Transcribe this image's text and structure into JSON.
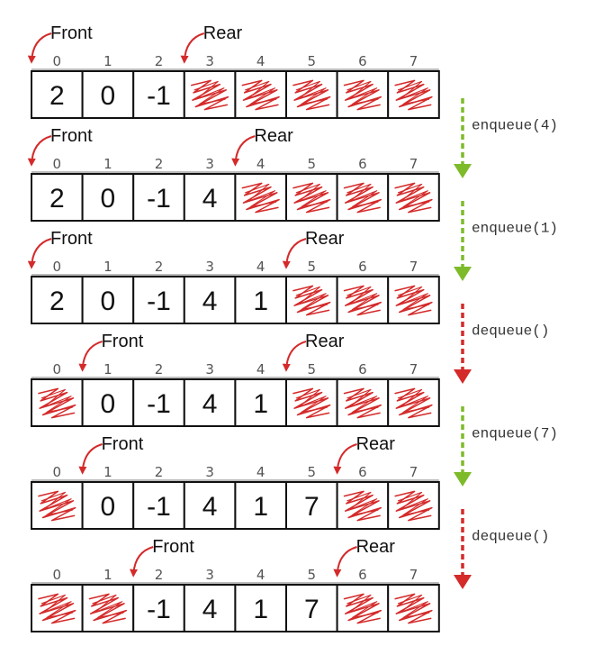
{
  "colors": {
    "pointer_arrow": "#d42a2a",
    "scribble": "#d42a2a",
    "enqueue_arrow": "#7dbb2a",
    "dequeue_arrow": "#d42a2a",
    "border": "#111111",
    "text": "#111111",
    "index_text": "#555555"
  },
  "labels": {
    "front": "Front",
    "rear": "Rear"
  },
  "indices": [
    "0",
    "1",
    "2",
    "3",
    "4",
    "5",
    "6",
    "7"
  ],
  "states": [
    {
      "front": 0,
      "rear": 3,
      "cells": [
        "2",
        "0",
        "-1",
        null,
        null,
        null,
        null,
        null
      ]
    },
    {
      "front": 0,
      "rear": 4,
      "cells": [
        "2",
        "0",
        "-1",
        "4",
        null,
        null,
        null,
        null
      ]
    },
    {
      "front": 0,
      "rear": 5,
      "cells": [
        "2",
        "0",
        "-1",
        "4",
        "1",
        null,
        null,
        null
      ]
    },
    {
      "front": 1,
      "rear": 5,
      "cells": [
        null,
        "0",
        "-1",
        "4",
        "1",
        null,
        null,
        null
      ]
    },
    {
      "front": 1,
      "rear": 6,
      "cells": [
        null,
        "0",
        "-1",
        "4",
        "1",
        "7",
        null,
        null
      ]
    },
    {
      "front": 2,
      "rear": 6,
      "cells": [
        null,
        null,
        "-1",
        "4",
        "1",
        "7",
        null,
        null
      ]
    }
  ],
  "operations": [
    {
      "label": "enqueue(4)",
      "kind": "enqueue"
    },
    {
      "label": "enqueue(1)",
      "kind": "enqueue"
    },
    {
      "label": "dequeue()",
      "kind": "dequeue"
    },
    {
      "label": "enqueue(7)",
      "kind": "enqueue"
    },
    {
      "label": "dequeue()",
      "kind": "dequeue"
    }
  ]
}
